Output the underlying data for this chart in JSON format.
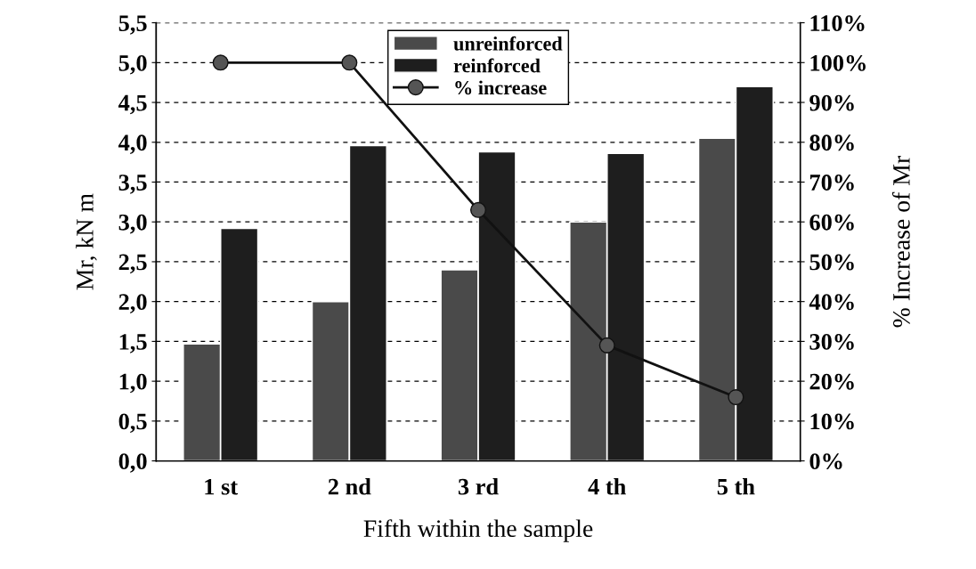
{
  "chart_data": {
    "type": "bar",
    "xlabel": "Fifth within the sample",
    "ylabel": "Mr, kN m",
    "y2label": "% Increase of Mr",
    "categories": [
      "1 st",
      "2 nd",
      "3 rd",
      "4 th",
      "5 th"
    ],
    "series": [
      {
        "name": "unreinforced",
        "color": "#4a4a4a",
        "values": [
          1.47,
          2.0,
          2.4,
          3.0,
          4.05
        ]
      },
      {
        "name": "reinforced",
        "color": "#1e1e1e",
        "values": [
          2.92,
          3.96,
          3.88,
          3.86,
          4.7
        ]
      },
      {
        "name": "% increase",
        "type": "line",
        "axis": "y2",
        "color": "#111111",
        "marker": "circle",
        "values": [
          100,
          100,
          63,
          29,
          16
        ]
      }
    ],
    "ylim": [
      0,
      5.5
    ],
    "yticks": [
      {
        "value": 0,
        "label": "0,0"
      },
      {
        "value": 0.5,
        "label": "0,5"
      },
      {
        "value": 1,
        "label": "1,0"
      },
      {
        "value": 1.5,
        "label": "1,5"
      },
      {
        "value": 2,
        "label": "2,0"
      },
      {
        "value": 2.5,
        "label": "2,5"
      },
      {
        "value": 3,
        "label": "3,0"
      },
      {
        "value": 3.5,
        "label": "3,5"
      },
      {
        "value": 4,
        "label": "4,0"
      },
      {
        "value": 4.5,
        "label": "4,5"
      },
      {
        "value": 5,
        "label": "5,0"
      },
      {
        "value": 5.5,
        "label": "5,5"
      }
    ],
    "y2lim": [
      0,
      110
    ],
    "y2ticks": [
      {
        "value": 0,
        "label": "0%"
      },
      {
        "value": 10,
        "label": "10%"
      },
      {
        "value": 20,
        "label": "20%"
      },
      {
        "value": 30,
        "label": "30%"
      },
      {
        "value": 40,
        "label": "40%"
      },
      {
        "value": 50,
        "label": "50%"
      },
      {
        "value": 60,
        "label": "60%"
      },
      {
        "value": 70,
        "label": "70%"
      },
      {
        "value": 80,
        "label": "80%"
      },
      {
        "value": 90,
        "label": "90%"
      },
      {
        "value": 100,
        "label": "100%"
      },
      {
        "value": 110,
        "label": "110%"
      }
    ],
    "grid": "y",
    "line_style": "solid",
    "legend": "top"
  }
}
